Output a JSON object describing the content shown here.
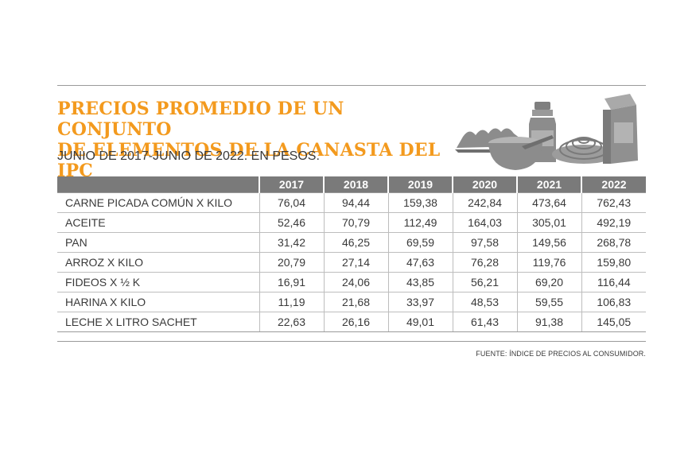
{
  "title": "PRECIOS PROMEDIO DE UN CONJUNTO DE ELEMENTOS DE LA CANASTA DEL IPC",
  "title_line1": "PRECIOS PROMEDIO DE UN CONJUNTO",
  "title_line2": "DE ELEMENTOS DE LA CANASTA DEL IPC",
  "subtitle": "JUNIO DE 2017-JUNIO DE 2022. EN PESOS.",
  "source": "FUENTE: ÍNDICE DE PRECIOS AL CONSUMIDOR.",
  "colors": {
    "accent": "#f39a1e",
    "header_bg": "#7a7a7a",
    "illustration": "#8c8c8c"
  },
  "illustration_icons": [
    "egg-carton-icon",
    "bottle-icon",
    "bowl-icon",
    "pasta-plate-icon",
    "milk-carton-icon"
  ],
  "chart_data": {
    "type": "table",
    "title": "PRECIOS PROMEDIO DE UN CONJUNTO DE ELEMENTOS DE LA CANASTA DEL IPC",
    "subtitle": "JUNIO DE 2017-JUNIO DE 2022. EN PESOS.",
    "columns": [
      "",
      "2017",
      "2018",
      "2019",
      "2020",
      "2021",
      "2022"
    ],
    "rows": [
      {
        "label": "CARNE PICADA COMÚN X KILO",
        "values": [
          "76,04",
          "94,44",
          "159,38",
          "242,84",
          "473,64",
          "762,43"
        ]
      },
      {
        "label": "ACEITE",
        "values": [
          "52,46",
          "70,79",
          "112,49",
          "164,03",
          "305,01",
          "492,19"
        ]
      },
      {
        "label": "PAN",
        "values": [
          "31,42",
          "46,25",
          "69,59",
          "97,58",
          "149,56",
          "268,78"
        ]
      },
      {
        "label": "ARROZ X KILO",
        "values": [
          "20,79",
          "27,14",
          "47,63",
          "76,28",
          "119,76",
          "159,80"
        ]
      },
      {
        "label": "FIDEOS X ½ K",
        "values": [
          "16,91",
          "24,06",
          "43,85",
          "56,21",
          "69,20",
          "116,44"
        ]
      },
      {
        "label": "HARINA X KILO",
        "values": [
          "11,19",
          "21,68",
          "33,97",
          "48,53",
          "59,55",
          "106,83"
        ]
      },
      {
        "label": "LECHE X LITRO SACHET",
        "values": [
          "22,63",
          "26,16",
          "49,01",
          "61,43",
          "91,38",
          "145,05"
        ]
      }
    ]
  }
}
